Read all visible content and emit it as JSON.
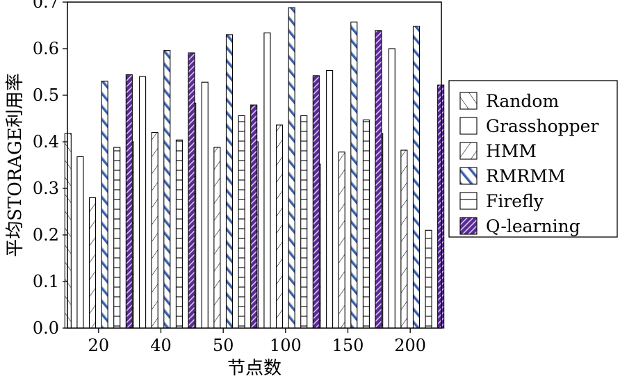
{
  "chart_data": {
    "type": "bar",
    "xlabel": "节点数",
    "ylabel": "平均STORAGE利用率",
    "categories": [
      "20",
      "40",
      "50",
      "100",
      "150",
      "200"
    ],
    "ylim": [
      0,
      0.7
    ],
    "yticks": [
      0.0,
      0.1,
      0.2,
      0.3,
      0.4,
      0.5,
      0.6,
      0.7
    ],
    "ytick_labels": [
      "0.0",
      "0.1",
      "0.2",
      "0.3",
      "0.4",
      "0.5",
      "0.6",
      "0.7"
    ],
    "grid": false,
    "legend_position": "right",
    "series": [
      {
        "name": "Random",
        "pattern": "backslash-hatch",
        "color": "#000000",
        "values": [
          0.418,
          0.4,
          0.483,
          0.4,
          0.352,
          0.418
        ]
      },
      {
        "name": "Grasshopper",
        "pattern": "none",
        "color": "#000000",
        "values": [
          0.368,
          0.54,
          0.528,
          0.634,
          0.553,
          0.6
        ]
      },
      {
        "name": "HMM",
        "pattern": "slash-hatch",
        "color": "#000000",
        "values": [
          0.28,
          0.42,
          0.388,
          0.436,
          0.378,
          0.382
        ]
      },
      {
        "name": "RMRMM",
        "pattern": "blue-backslash",
        "color": "#3a5fa8",
        "values": [
          0.53,
          0.596,
          0.63,
          0.688,
          0.657,
          0.648
        ]
      },
      {
        "name": "Firefly",
        "pattern": "horizontal-lines",
        "color": "#000000",
        "values": [
          0.388,
          0.404,
          0.456,
          0.456,
          0.447,
          0.21
        ]
      },
      {
        "name": "Q-learning",
        "pattern": "purple-checker",
        "color": "#5b2a96",
        "values": [
          0.544,
          0.591,
          0.479,
          0.542,
          0.639,
          0.522
        ]
      }
    ]
  }
}
